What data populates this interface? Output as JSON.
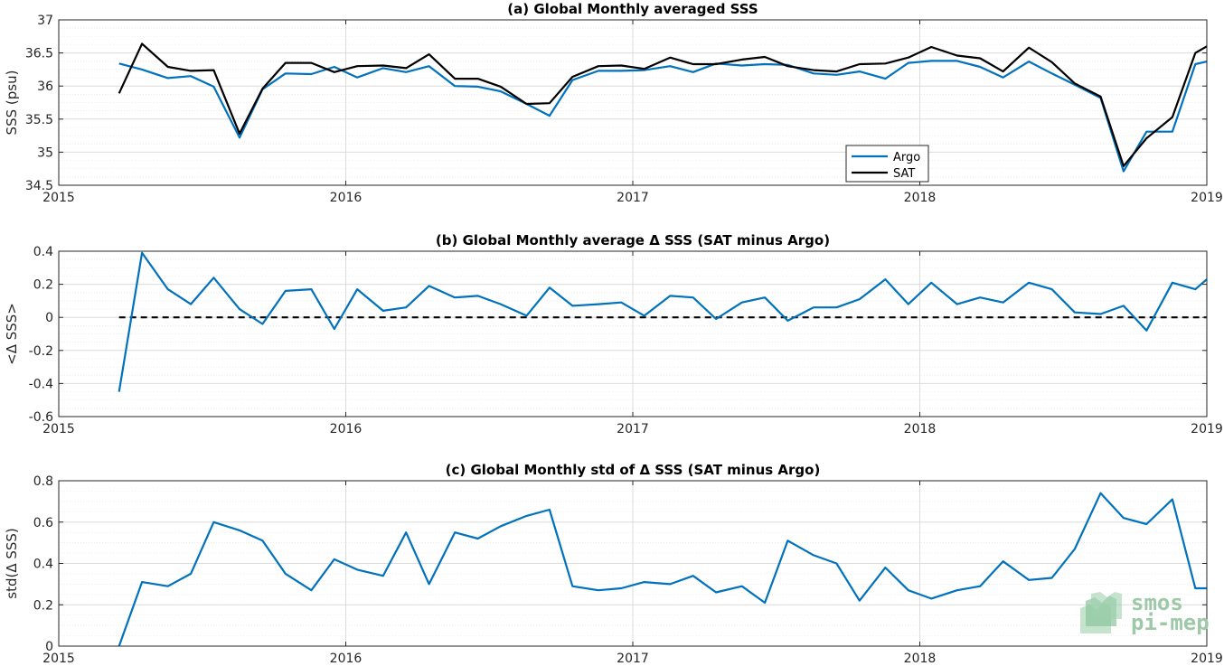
{
  "logo": {
    "line1": "smos",
    "line2": "pi-mep"
  },
  "chart_data": [
    {
      "type": "line",
      "title": "(a) Global Monthly averaged SSS",
      "xlabel": "",
      "ylabel": "SSS (psu)",
      "xlim": [
        2015,
        2019
      ],
      "ylim": [
        34.5,
        37
      ],
      "yticks": [
        "34.5",
        "35",
        "35.5",
        "36",
        "36.5",
        "37"
      ],
      "xticks": [
        "2015",
        "2016",
        "2017",
        "2018",
        "2019"
      ],
      "grid": true,
      "legend": "bottom-right",
      "x": [
        2015.21,
        2015.29,
        2015.38,
        2015.46,
        2015.54,
        2015.63,
        2015.71,
        2015.79,
        2015.88,
        2015.96,
        2016.04,
        2016.13,
        2016.21,
        2016.29,
        2016.38,
        2016.46,
        2016.54,
        2016.63,
        2016.71,
        2016.79,
        2016.88,
        2016.96,
        2017.04,
        2017.13,
        2017.21,
        2017.29,
        2017.38,
        2017.46,
        2017.54,
        2017.63,
        2017.71,
        2017.79,
        2017.88,
        2017.96,
        2018.04,
        2018.13,
        2018.21,
        2018.29,
        2018.38,
        2018.46,
        2018.54,
        2018.63,
        2018.71,
        2018.79,
        2018.88,
        2018.96,
        2019.0
      ],
      "series": [
        {
          "name": "Argo",
          "color": "#0072bd",
          "values": [
            36.34,
            36.25,
            36.12,
            36.15,
            35.99,
            35.22,
            35.95,
            36.19,
            36.18,
            36.29,
            36.13,
            36.27,
            36.21,
            36.3,
            36.0,
            35.99,
            35.92,
            35.73,
            35.55,
            36.09,
            36.23,
            36.23,
            36.24,
            36.3,
            36.21,
            36.34,
            36.31,
            36.33,
            36.32,
            36.19,
            36.17,
            36.22,
            36.11,
            36.35,
            36.38,
            36.38,
            36.29,
            36.13,
            36.37,
            36.19,
            36.02,
            35.82,
            34.71,
            35.31,
            35.31,
            36.33,
            36.37
          ]
        },
        {
          "name": "SAT",
          "color": "#000000",
          "values": [
            35.89,
            36.64,
            36.29,
            36.23,
            36.24,
            35.28,
            35.96,
            36.35,
            36.35,
            36.21,
            36.3,
            36.31,
            36.27,
            36.48,
            36.11,
            36.11,
            35.99,
            35.73,
            35.74,
            36.14,
            36.3,
            36.31,
            36.26,
            36.43,
            36.33,
            36.33,
            36.4,
            36.44,
            36.3,
            36.24,
            36.22,
            36.33,
            36.34,
            36.43,
            36.59,
            36.46,
            36.42,
            36.22,
            36.58,
            36.36,
            36.04,
            35.84,
            34.79,
            35.21,
            35.53,
            36.5,
            36.6
          ]
        }
      ]
    },
    {
      "type": "line",
      "title": "(b) Global Monthly average Δ SSS (SAT minus Argo)",
      "xlabel": "",
      "ylabel": "<Δ SSS>",
      "xlim": [
        2015,
        2019
      ],
      "ylim": [
        -0.6,
        0.4
      ],
      "yticks": [
        "-0.6",
        "-0.4",
        "-0.2",
        "0",
        "0.2",
        "0.4"
      ],
      "xticks": [
        "2015",
        "2016",
        "2017",
        "2018",
        "2019"
      ],
      "grid": true,
      "reference_line": 0,
      "x": [
        2015.21,
        2015.29,
        2015.38,
        2015.46,
        2015.54,
        2015.63,
        2015.71,
        2015.79,
        2015.88,
        2015.96,
        2016.04,
        2016.13,
        2016.21,
        2016.29,
        2016.38,
        2016.46,
        2016.54,
        2016.63,
        2016.71,
        2016.79,
        2016.88,
        2016.96,
        2017.04,
        2017.13,
        2017.21,
        2017.29,
        2017.38,
        2017.46,
        2017.54,
        2017.63,
        2017.71,
        2017.79,
        2017.88,
        2017.96,
        2018.04,
        2018.13,
        2018.21,
        2018.29,
        2018.38,
        2018.46,
        2018.54,
        2018.63,
        2018.71,
        2018.79,
        2018.88,
        2018.96,
        2019.0
      ],
      "series": [
        {
          "name": "",
          "color": "#0072bd",
          "values": [
            -0.45,
            0.39,
            0.17,
            0.08,
            0.24,
            0.05,
            -0.04,
            0.16,
            0.17,
            -0.07,
            0.17,
            0.04,
            0.06,
            0.19,
            0.12,
            0.13,
            0.08,
            0.01,
            0.18,
            0.07,
            0.08,
            0.09,
            0.01,
            0.13,
            0.12,
            -0.01,
            0.09,
            0.12,
            -0.02,
            0.06,
            0.06,
            0.11,
            0.23,
            0.08,
            0.21,
            0.08,
            0.12,
            0.09,
            0.21,
            0.17,
            0.03,
            0.02,
            0.07,
            -0.08,
            0.21,
            0.17,
            0.23
          ]
        }
      ]
    },
    {
      "type": "line",
      "title": "(c) Global Monthly std of Δ SSS (SAT minus Argo)",
      "xlabel": "",
      "ylabel": "std(Δ SSS)",
      "xlim": [
        2015,
        2019
      ],
      "ylim": [
        0,
        0.8
      ],
      "yticks": [
        "0",
        "0.2",
        "0.4",
        "0.6",
        "0.8"
      ],
      "xticks": [
        "2015",
        "2016",
        "2017",
        "2018",
        "2019"
      ],
      "grid": true,
      "x": [
        2015.21,
        2015.29,
        2015.38,
        2015.46,
        2015.54,
        2015.63,
        2015.71,
        2015.79,
        2015.88,
        2015.96,
        2016.04,
        2016.13,
        2016.21,
        2016.29,
        2016.38,
        2016.46,
        2016.54,
        2016.63,
        2016.71,
        2016.79,
        2016.88,
        2016.96,
        2017.04,
        2017.13,
        2017.21,
        2017.29,
        2017.38,
        2017.46,
        2017.54,
        2017.63,
        2017.71,
        2017.79,
        2017.88,
        2017.96,
        2018.04,
        2018.13,
        2018.21,
        2018.29,
        2018.38,
        2018.46,
        2018.54,
        2018.63,
        2018.71,
        2018.79,
        2018.88,
        2018.96,
        2019.0
      ],
      "series": [
        {
          "name": "",
          "color": "#0072bd",
          "values": [
            0.0,
            0.31,
            0.29,
            0.35,
            0.6,
            0.56,
            0.51,
            0.35,
            0.27,
            0.42,
            0.37,
            0.34,
            0.55,
            0.3,
            0.55,
            0.52,
            0.58,
            0.63,
            0.66,
            0.29,
            0.27,
            0.28,
            0.31,
            0.3,
            0.34,
            0.26,
            0.29,
            0.21,
            0.51,
            0.44,
            0.4,
            0.22,
            0.38,
            0.27,
            0.23,
            0.27,
            0.29,
            0.41,
            0.32,
            0.33,
            0.47,
            0.74,
            0.62,
            0.59,
            0.71,
            0.28,
            0.28
          ]
        }
      ]
    }
  ]
}
